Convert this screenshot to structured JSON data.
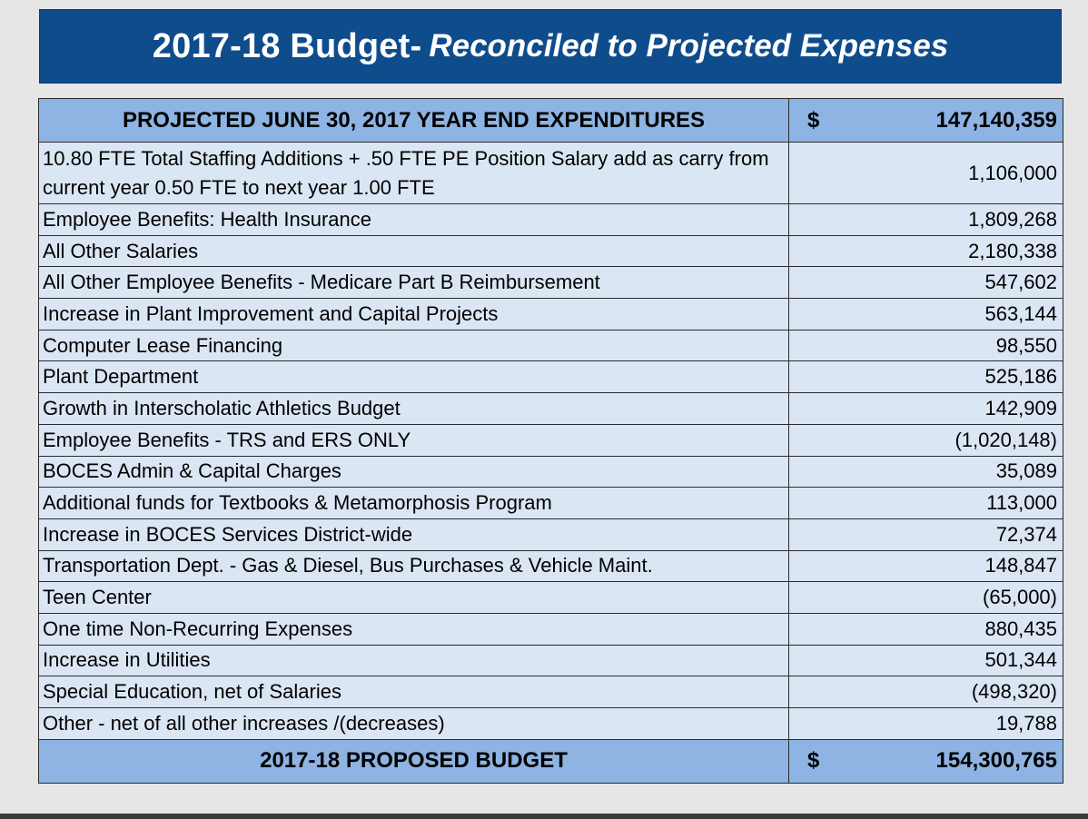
{
  "title": {
    "main": "2017-18 Budget-",
    "sub": "Reconciled to Projected Expenses"
  },
  "header_row": {
    "label": "PROJECTED JUNE 30, 2017 YEAR END EXPENDITURES",
    "currency": "$",
    "amount": "147,140,359"
  },
  "rows": [
    {
      "label": "10.80 FTE Total Staffing Additions  + .50 FTE PE Position Salary add as carry from current year 0.50 FTE to next year 1.00 FTE",
      "amount": "1,106,000"
    },
    {
      "label": "Employee Benefits: Health Insurance",
      "amount": "1,809,268"
    },
    {
      "label": "All Other Salaries",
      "amount": "2,180,338"
    },
    {
      "label": "All Other Employee Benefits - Medicare Part B Reimbursement",
      "amount": "547,602"
    },
    {
      "label": "Increase in Plant Improvement and Capital Projects",
      "amount": "563,144"
    },
    {
      "label": "Computer Lease Financing",
      "amount": "98,550"
    },
    {
      "label": "Plant Department",
      "amount": "525,186"
    },
    {
      "label": "Growth in Interscholatic Athletics Budget",
      "amount": "142,909"
    },
    {
      "label": "Employee Benefits - TRS and ERS ONLY",
      "amount": "(1,020,148)"
    },
    {
      "label": "BOCES Admin & Capital Charges",
      "amount": "35,089"
    },
    {
      "label": "Additional funds for Textbooks & Metamorphosis Program",
      "amount": "113,000"
    },
    {
      "label": "Increase in BOCES Services District-wide",
      "amount": "72,374"
    },
    {
      "label": "Transportation Dept. - Gas & Diesel, Bus Purchases & Vehicle Maint.",
      "amount": "148,847"
    },
    {
      "label": "Teen Center",
      "amount": "(65,000)"
    },
    {
      "label": "One time Non-Recurring Expenses",
      "amount": "880,435"
    },
    {
      "label": "Increase in Utilities",
      "amount": "501,344"
    },
    {
      "label": "Special Education, net of Salaries",
      "amount": "(498,320)"
    },
    {
      "label": "Other - net of all other increases /(decreases)",
      "amount": "19,788"
    }
  ],
  "total_row": {
    "label": "2017-18 PROPOSED BUDGET",
    "currency": "$",
    "amount": "154,300,765"
  },
  "colors": {
    "banner": "#0f4c8c",
    "header_fill": "#8eb4e3",
    "row_fill": "#dbe6f4"
  }
}
